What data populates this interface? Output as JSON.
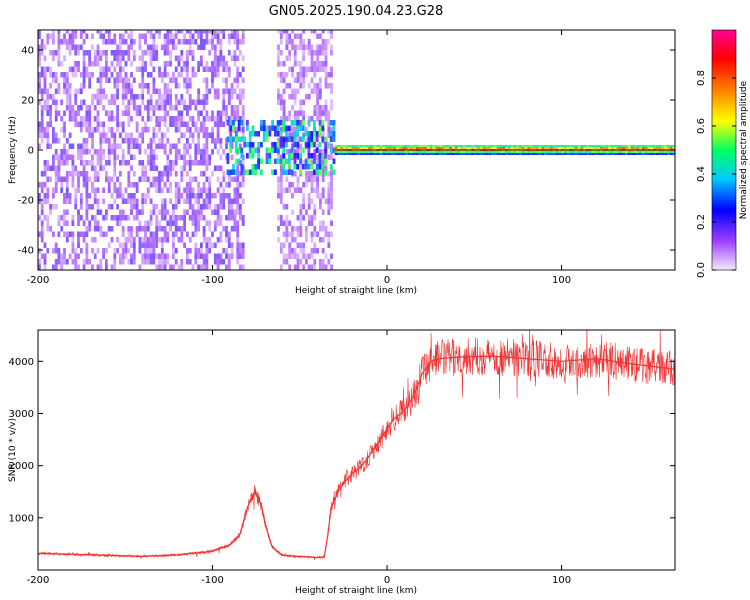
{
  "title": "GN05.2025.190.04.23.G28",
  "chart_data": [
    {
      "type": "heatmap",
      "xlabel": "Height of straight line (km)",
      "ylabel": "Frequency (Hz)",
      "xlim": [
        -200,
        165
      ],
      "ylim": [
        -48,
        48
      ],
      "xticks": [
        -200,
        -100,
        0,
        100
      ],
      "yticks": [
        -40,
        -20,
        0,
        20,
        40
      ],
      "colorbar": {
        "label": "Normalized spectral amplitude",
        "range": [
          0,
          1
        ],
        "ticks": [
          0,
          0.2,
          0.4,
          0.6,
          0.8
        ],
        "colors": [
          "#f4e9fb",
          "#a040ff",
          "#0000ff",
          "#00ccff",
          "#00ff60",
          "#ffff00",
          "#ff8000",
          "#ff0000",
          "#ff0099"
        ]
      },
      "regions": [
        {
          "x_range": [
            -200,
            -82
          ],
          "freq_range": [
            -48,
            48
          ],
          "amplitude": 0.12,
          "note": "broadband noise"
        },
        {
          "x_range": [
            -63,
            -32
          ],
          "freq_range": [
            -48,
            48
          ],
          "amplitude": 0.1,
          "note": "broadband noise"
        },
        {
          "x_range": [
            -92,
            -30
          ],
          "freq_range": [
            -10,
            10
          ],
          "amplitude": 0.35,
          "note": "signal onset"
        },
        {
          "x_range": [
            -30,
            165
          ],
          "freq_range": [
            -2,
            2
          ],
          "amplitude": 0.9,
          "note": "carrier line"
        }
      ]
    },
    {
      "type": "line",
      "xlabel": "Height of straight line (km)",
      "ylabel": "SNR (10 * v/v)",
      "xlim": [
        -200,
        165
      ],
      "ylim": [
        0,
        4600
      ],
      "xticks": [
        -200,
        -100,
        0,
        100
      ],
      "yticks": [
        1000,
        2000,
        3000,
        4000
      ],
      "color": "#ee3333",
      "series": [
        {
          "x": [
            -200,
            -180,
            -160,
            -140,
            -120,
            -100,
            -90,
            -84,
            -80,
            -76,
            -72,
            -70,
            -66,
            -60,
            -50,
            -40,
            -36,
            -34,
            -32,
            -28,
            -24,
            -20,
            -16,
            -12,
            -8,
            -4,
            0,
            4,
            8,
            12,
            16,
            20,
            25,
            30,
            40,
            60,
            80,
            100,
            120,
            140,
            165
          ],
          "y": [
            320,
            300,
            280,
            260,
            290,
            360,
            480,
            700,
            1200,
            1500,
            1250,
            900,
            450,
            280,
            260,
            240,
            250,
            650,
            1200,
            1500,
            1700,
            1850,
            1950,
            2100,
            2300,
            2500,
            2700,
            2900,
            3000,
            3150,
            3400,
            3750,
            4000,
            4050,
            4080,
            4100,
            4050,
            4000,
            4050,
            3950,
            3850
          ]
        }
      ]
    }
  ]
}
